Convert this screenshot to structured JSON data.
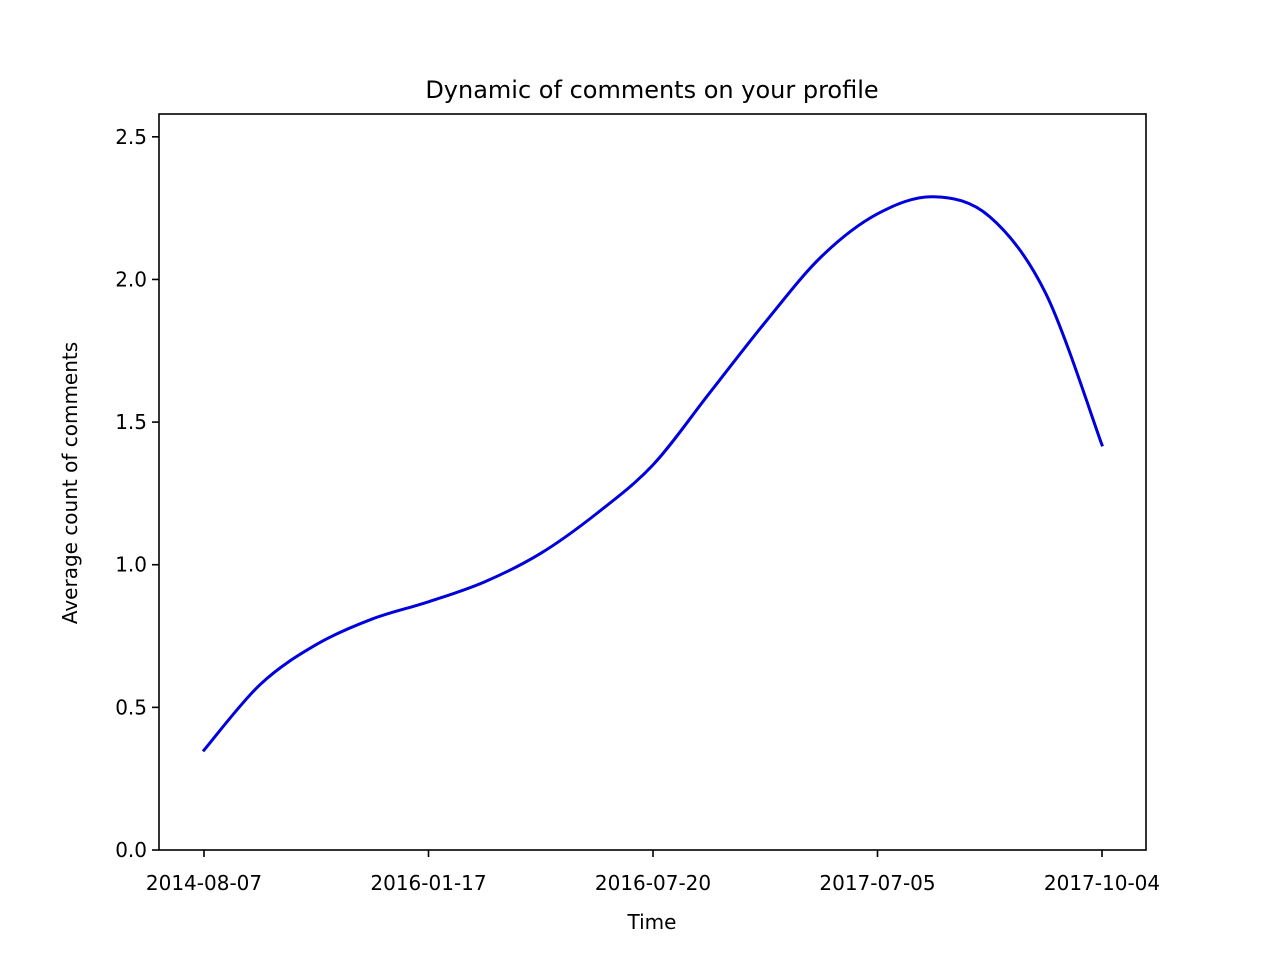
{
  "chart_data": {
    "type": "line",
    "title": "Dynamic of comments on your profile",
    "xlabel": "Time",
    "ylabel": "Average count of comments",
    "x_tick_labels": [
      "2014-08-07",
      "2016-01-17",
      "2016-07-20",
      "2017-07-05",
      "2017-10-04"
    ],
    "ylim": [
      0.0,
      2.58
    ],
    "y_ticks": [
      0.0,
      0.5,
      1.0,
      1.5,
      2.0,
      2.5
    ],
    "y_tick_labels": [
      "0.0",
      "0.5",
      "1.0",
      "1.5",
      "2.0",
      "2.5"
    ],
    "grid": false,
    "legend": "none",
    "line_color": "#0000dd",
    "series": [
      {
        "x": [
          0.0,
          0.25,
          0.5,
          0.75,
          1.0,
          1.25,
          1.5,
          1.75,
          2.0,
          2.25,
          2.5,
          2.75,
          3.0,
          3.25,
          3.5,
          3.75,
          4.0
        ],
        "values": [
          0.35,
          0.58,
          0.72,
          0.81,
          0.87,
          0.94,
          1.04,
          1.18,
          1.35,
          1.6,
          1.85,
          2.08,
          2.23,
          2.29,
          2.22,
          1.95,
          1.42
        ]
      }
    ]
  }
}
